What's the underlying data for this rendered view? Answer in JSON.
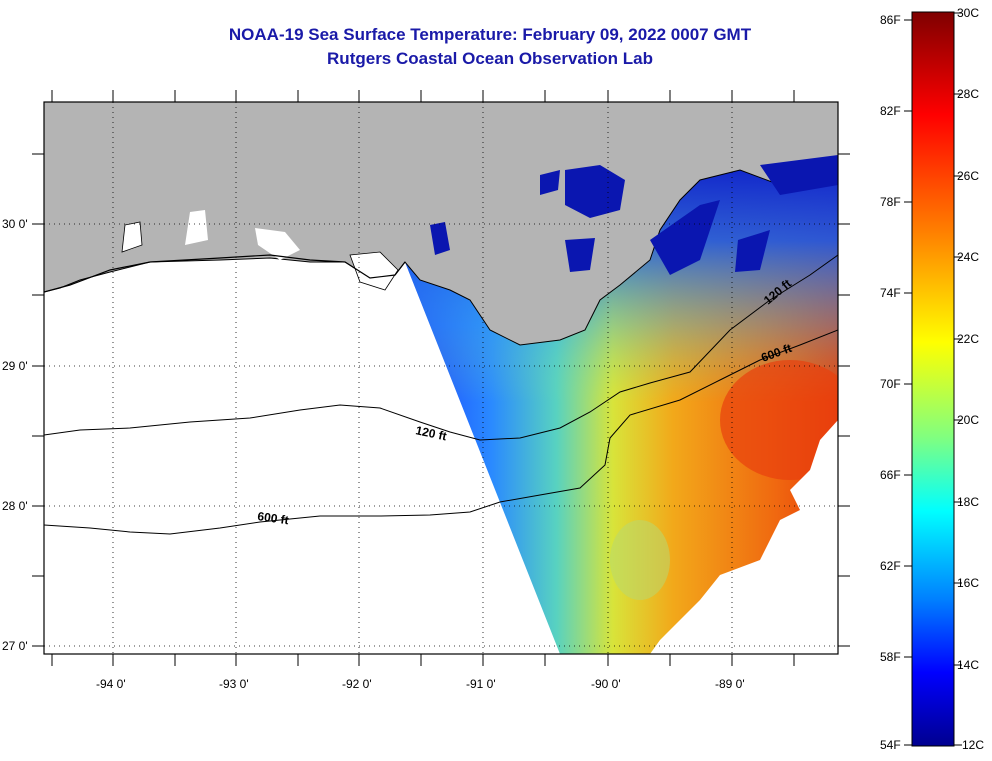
{
  "header": {
    "title": "NOAA-19 Sea Surface Temperature:  February 09, 2022 0007 GMT",
    "subtitle": "Rutgers Coastal Ocean Observation Lab"
  },
  "map": {
    "lon_labels": [
      "-94 0'",
      "-93 0'",
      "-92 0'",
      "-91 0'",
      "-90 0'",
      "-89 0'"
    ],
    "lat_labels": [
      "30 0'",
      "29 0'",
      "28 0'",
      "27 0'"
    ],
    "contour_labels": [
      "120 ft",
      "600 ft",
      "120 ft",
      "600 ft"
    ],
    "land_color": "#b4b4b4",
    "no_data_color": "#ffffff"
  },
  "colorbar": {
    "f_labels": [
      "86F",
      "82F",
      "78F",
      "74F",
      "70F",
      "66F",
      "62F",
      "58F",
      "54F"
    ],
    "c_labels": [
      "30C",
      "28C",
      "26C",
      "24C",
      "22C",
      "20C",
      "18C",
      "16C",
      "14C",
      "12C"
    ],
    "colors": [
      "#7f0000",
      "#ff0000",
      "#ff7f00",
      "#ffff00",
      "#80ff80",
      "#00ffff",
      "#0080ff",
      "#0000ff",
      "#00008f"
    ]
  }
}
